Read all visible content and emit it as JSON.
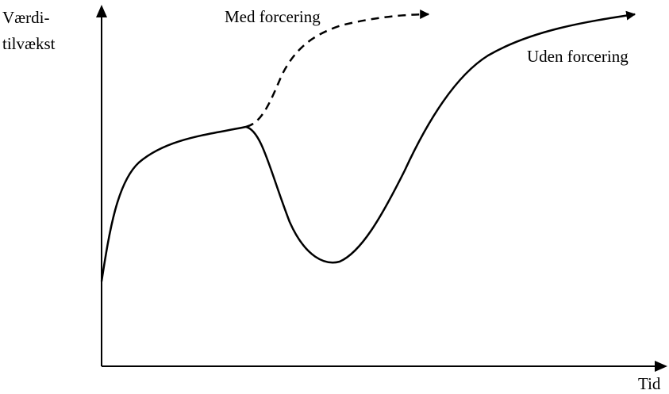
{
  "diagram": {
    "y_axis_label_line1": "Værdi-",
    "y_axis_label_line2": "tilvækst",
    "x_axis_label": "Tid",
    "dashed_curve_label": "Med forcering",
    "solid_curve_label": "Uden forcering"
  },
  "colors": {
    "stroke": "#000000",
    "text": "#000000",
    "background": "#ffffff"
  }
}
